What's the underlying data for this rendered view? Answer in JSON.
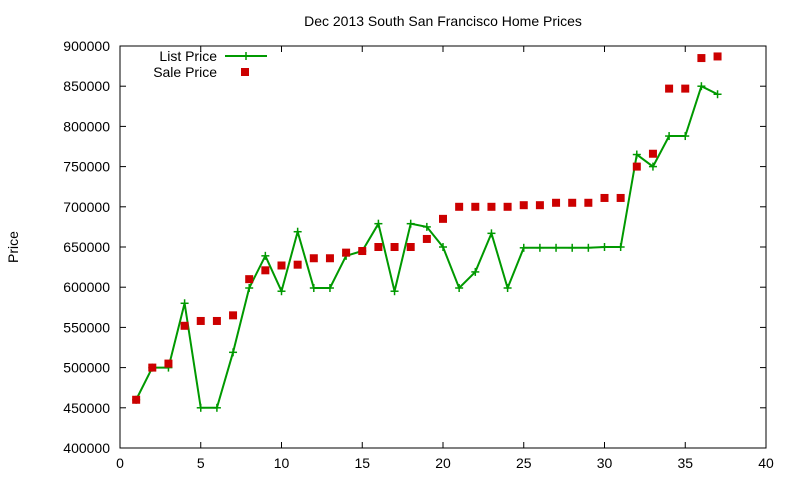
{
  "chart_data": {
    "type": "line",
    "title": "Dec 2013 South San Francisco Home Prices",
    "xlabel": "",
    "ylabel": "Price",
    "xlim": [
      0,
      40
    ],
    "ylim": [
      400000,
      900000
    ],
    "xticks": [
      0,
      5,
      10,
      15,
      20,
      25,
      30,
      35,
      40
    ],
    "yticks": [
      400000,
      450000,
      500000,
      550000,
      600000,
      650000,
      700000,
      750000,
      800000,
      850000,
      900000
    ],
    "grid": false,
    "legend_position": "top-left",
    "series": [
      {
        "name": "List Price",
        "style": "line-plus",
        "color": "#009900",
        "x": [
          1,
          2,
          3,
          4,
          5,
          6,
          7,
          8,
          9,
          10,
          11,
          12,
          13,
          14,
          15,
          16,
          17,
          18,
          19,
          20,
          21,
          22,
          23,
          24,
          25,
          26,
          27,
          28,
          29,
          30,
          31,
          32,
          33,
          34,
          35,
          36,
          37
        ],
        "y": [
          460000,
          500000,
          500000,
          580000,
          450000,
          450000,
          519000,
          599000,
          639000,
          595000,
          669000,
          599000,
          599000,
          639000,
          645000,
          679000,
          595000,
          679000,
          675000,
          650000,
          599000,
          619000,
          667000,
          599000,
          649000,
          649000,
          649000,
          649000,
          649000,
          650000,
          650000,
          765000,
          750000,
          788000,
          788000,
          850000,
          840000
        ]
      },
      {
        "name": "Sale Price",
        "style": "square",
        "color": "#cc0000",
        "x": [
          1,
          2,
          3,
          4,
          5,
          6,
          7,
          8,
          9,
          10,
          11,
          12,
          13,
          14,
          15,
          16,
          17,
          18,
          19,
          20,
          21,
          22,
          23,
          24,
          25,
          26,
          27,
          28,
          29,
          30,
          31,
          32,
          33,
          34,
          35,
          36,
          37
        ],
        "y": [
          460000,
          500000,
          505000,
          552000,
          558000,
          558000,
          565000,
          610000,
          621000,
          627000,
          628000,
          636000,
          636000,
          643000,
          645000,
          650000,
          650000,
          650000,
          660000,
          685000,
          700000,
          700000,
          700000,
          700000,
          702000,
          702000,
          705000,
          705000,
          705000,
          711000,
          711000,
          750000,
          766000,
          847000,
          847000,
          885000,
          887000
        ]
      }
    ]
  }
}
